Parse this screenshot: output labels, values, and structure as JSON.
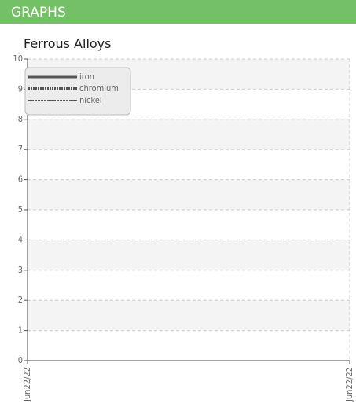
{
  "header": {
    "title": "GRAPHS"
  },
  "chart_data": {
    "type": "line",
    "title": "Ferrous Alloys",
    "x": [],
    "series": [
      {
        "name": "iron",
        "color": "#555555",
        "style": "solid",
        "values": []
      },
      {
        "name": "chromium",
        "color": "#555555",
        "style": "dotted",
        "values": []
      },
      {
        "name": "nickel",
        "color": "#555555",
        "style": "dashed",
        "values": []
      }
    ],
    "xlim": [
      0,
      1
    ],
    "xticks": [
      {
        "value": 0,
        "label": "Jun22/22"
      },
      {
        "value": 1,
        "label": "Jun22/22"
      }
    ],
    "ylim": [
      0,
      10
    ],
    "yticks": [
      0,
      1,
      2,
      3,
      4,
      5,
      6,
      7,
      8,
      9,
      10
    ],
    "grid": true,
    "legend": "top-left"
  }
}
